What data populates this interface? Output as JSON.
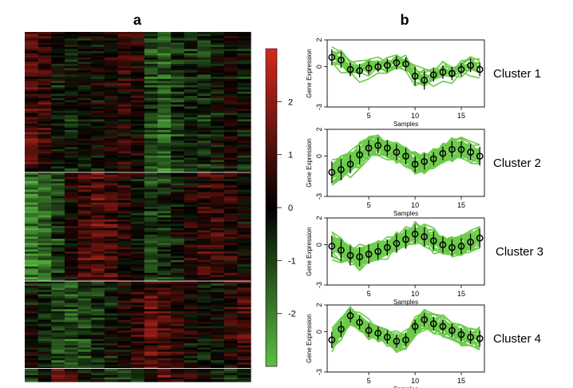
{
  "panels": {
    "a": "a",
    "b": "b"
  },
  "colorbar": {
    "ticks": [
      "2",
      "1",
      "0",
      "-1",
      "-2"
    ],
    "tick_values": [
      2,
      1,
      0,
      -1,
      -2
    ],
    "range": [
      -3,
      3
    ],
    "colors": {
      "high": "#d42a1f",
      "mid": "#000000",
      "low": "#5cc044"
    }
  },
  "heatmap": {
    "columns": 17,
    "cluster_row_counts": [
      66,
      51,
      41,
      6
    ],
    "separator_color": "#ffffff"
  },
  "chart_data": [
    {
      "type": "heatmap",
      "title": "",
      "columns": 17,
      "clusters": [
        {
          "rows": 66,
          "profile": [
            0.7,
            0.5,
            -0.2,
            -0.3,
            -0.1,
            0.0,
            0.1,
            0.3,
            0.2,
            -0.7,
            -1.0,
            -0.6,
            -0.4,
            -0.5,
            -0.2,
            0.1,
            -0.2
          ]
        },
        {
          "rows": 51,
          "profile": [
            -1.2,
            -1.0,
            -0.6,
            0.1,
            0.6,
            0.8,
            0.6,
            0.3,
            0.0,
            -0.6,
            -0.4,
            -0.2,
            0.2,
            0.5,
            0.5,
            0.3,
            0.0
          ]
        },
        {
          "rows": 41,
          "profile": [
            -0.1,
            -0.4,
            -0.8,
            -0.9,
            -0.7,
            -0.5,
            -0.2,
            0.1,
            0.4,
            0.8,
            0.6,
            0.3,
            0.0,
            -0.2,
            -0.1,
            0.2,
            0.5
          ]
        },
        {
          "rows": 6,
          "profile": [
            -0.6,
            0.2,
            1.2,
            0.7,
            0.1,
            -0.1,
            -0.4,
            -0.7,
            -0.6,
            0.4,
            0.9,
            0.6,
            0.4,
            0.1,
            -0.2,
            -0.4,
            -0.5
          ]
        }
      ],
      "color_scale": {
        "min": -3,
        "max": 3,
        "ticks": [
          -2,
          -1,
          0,
          1,
          2
        ]
      }
    },
    {
      "type": "line",
      "title": "Cluster 1",
      "xlabel": "Samples",
      "ylabel": "Gene Expression",
      "xlim": [
        0.5,
        17.5
      ],
      "ylim": [
        -3,
        2
      ],
      "x_ticks": [
        5,
        10,
        15
      ],
      "y_ticks": [
        -3,
        0,
        2
      ],
      "x": [
        1,
        2,
        3,
        4,
        5,
        6,
        7,
        8,
        9,
        10,
        11,
        12,
        13,
        14,
        15,
        16,
        17
      ],
      "mean": [
        0.7,
        0.5,
        -0.2,
        -0.3,
        -0.1,
        0.0,
        0.1,
        0.3,
        0.2,
        -0.7,
        -1.0,
        -0.6,
        -0.4,
        -0.5,
        -0.2,
        0.1,
        -0.2
      ],
      "sd": [
        0.6,
        0.6,
        0.5,
        0.5,
        0.5,
        0.4,
        0.5,
        0.5,
        0.5,
        0.7,
        0.7,
        0.5,
        0.5,
        0.5,
        0.5,
        0.5,
        0.5
      ],
      "n_genes": 18
    },
    {
      "type": "line",
      "title": "Cluster 2",
      "xlabel": "Samples",
      "ylabel": "Gene Expression",
      "xlim": [
        0.5,
        17.5
      ],
      "ylim": [
        -3,
        2
      ],
      "x_ticks": [
        5,
        10,
        15
      ],
      "y_ticks": [
        -3,
        0,
        2
      ],
      "x": [
        1,
        2,
        3,
        4,
        5,
        6,
        7,
        8,
        9,
        10,
        11,
        12,
        13,
        14,
        15,
        16,
        17
      ],
      "mean": [
        -1.2,
        -1.0,
        -0.6,
        0.1,
        0.6,
        0.8,
        0.6,
        0.3,
        0.0,
        -0.6,
        -0.4,
        -0.2,
        0.2,
        0.5,
        0.5,
        0.3,
        0.0
      ],
      "sd": [
        0.8,
        0.8,
        0.7,
        0.7,
        0.6,
        0.6,
        0.6,
        0.6,
        0.6,
        0.6,
        0.6,
        0.5,
        0.5,
        0.6,
        0.6,
        0.6,
        0.7
      ],
      "n_genes": 40
    },
    {
      "type": "line",
      "title": "Cluster 3",
      "xlabel": "Samples",
      "ylabel": "Gene Expression",
      "xlim": [
        0.5,
        17.5
      ],
      "ylim": [
        -3,
        2
      ],
      "x_ticks": [
        5,
        10,
        15
      ],
      "y_ticks": [
        -3,
        0,
        2
      ],
      "x": [
        1,
        2,
        3,
        4,
        5,
        6,
        7,
        8,
        9,
        10,
        11,
        12,
        13,
        14,
        15,
        16,
        17
      ],
      "mean": [
        -0.1,
        -0.4,
        -0.8,
        -0.9,
        -0.7,
        -0.5,
        -0.2,
        0.1,
        0.4,
        0.8,
        0.6,
        0.3,
        0.0,
        -0.2,
        -0.1,
        0.2,
        0.5
      ],
      "sd": [
        0.8,
        0.8,
        0.7,
        0.7,
        0.7,
        0.6,
        0.6,
        0.7,
        0.7,
        0.7,
        0.7,
        0.7,
        0.6,
        0.6,
        0.6,
        0.6,
        0.7
      ],
      "n_genes": 40
    },
    {
      "type": "line",
      "title": "Cluster 4",
      "xlabel": "Samples",
      "ylabel": "Gene Expression",
      "xlim": [
        0.5,
        17.5
      ],
      "ylim": [
        -3,
        2
      ],
      "x_ticks": [
        5,
        10,
        15
      ],
      "y_ticks": [
        -3,
        0,
        2
      ],
      "x": [
        1,
        2,
        3,
        4,
        5,
        6,
        7,
        8,
        9,
        10,
        11,
        12,
        13,
        14,
        15,
        16,
        17
      ],
      "mean": [
        -0.6,
        0.2,
        1.2,
        0.7,
        0.1,
        -0.1,
        -0.4,
        -0.7,
        -0.6,
        0.4,
        0.9,
        0.6,
        0.4,
        0.1,
        -0.2,
        -0.4,
        -0.5
      ],
      "sd": [
        0.6,
        0.6,
        0.5,
        0.5,
        0.5,
        0.5,
        0.5,
        0.5,
        0.5,
        0.5,
        0.5,
        0.5,
        0.5,
        0.5,
        0.5,
        0.5,
        0.6
      ],
      "n_genes": 30
    }
  ]
}
